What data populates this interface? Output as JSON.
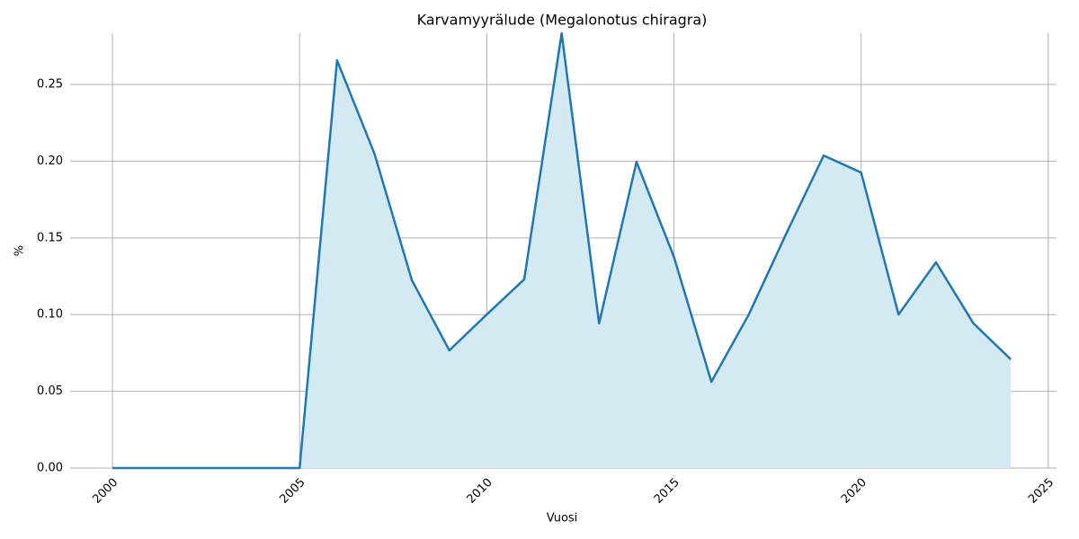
{
  "chart_data": {
    "type": "area",
    "title": "Karvamyyrälude (Megalonotus chiragra)",
    "x_label": "Vuosi",
    "y_label": "%",
    "x": [
      2000,
      2001,
      2002,
      2003,
      2004,
      2005,
      2006,
      2007,
      2008,
      2009,
      2010,
      2011,
      2012,
      2013,
      2014,
      2015,
      2016,
      2017,
      2018,
      2019,
      2020,
      2021,
      2022,
      2023,
      2024
    ],
    "values": [
      0,
      0,
      0,
      0,
      0,
      0,
      0.2658,
      0.2049,
      0.1224,
      0.0767,
      0.1001,
      0.123,
      0.2834,
      0.0943,
      0.1996,
      0.1376,
      0.0562,
      0.1001,
      0.1528,
      0.2037,
      0.1926,
      0.1001,
      0.1341,
      0.0943,
      0.0708
    ],
    "color": "#1f77b4",
    "fill_color": "#d4eaf2",
    "xlim": [
      1998.87,
      2025.22
    ],
    "xticks": [
      2000,
      2005,
      2010,
      2015,
      2020,
      2025
    ],
    "ylim": [
      0,
      0.2834
    ],
    "yticks": [
      {
        "value": 0,
        "label": "0.00"
      },
      {
        "value": 0.05,
        "label": "0.05"
      },
      {
        "value": 0.1,
        "label": "0.10"
      },
      {
        "value": 0.15,
        "label": "0.15"
      },
      {
        "value": 0.2,
        "label": "0.20"
      },
      {
        "value": 0.25,
        "label": "0.25"
      }
    ],
    "grid": true
  }
}
